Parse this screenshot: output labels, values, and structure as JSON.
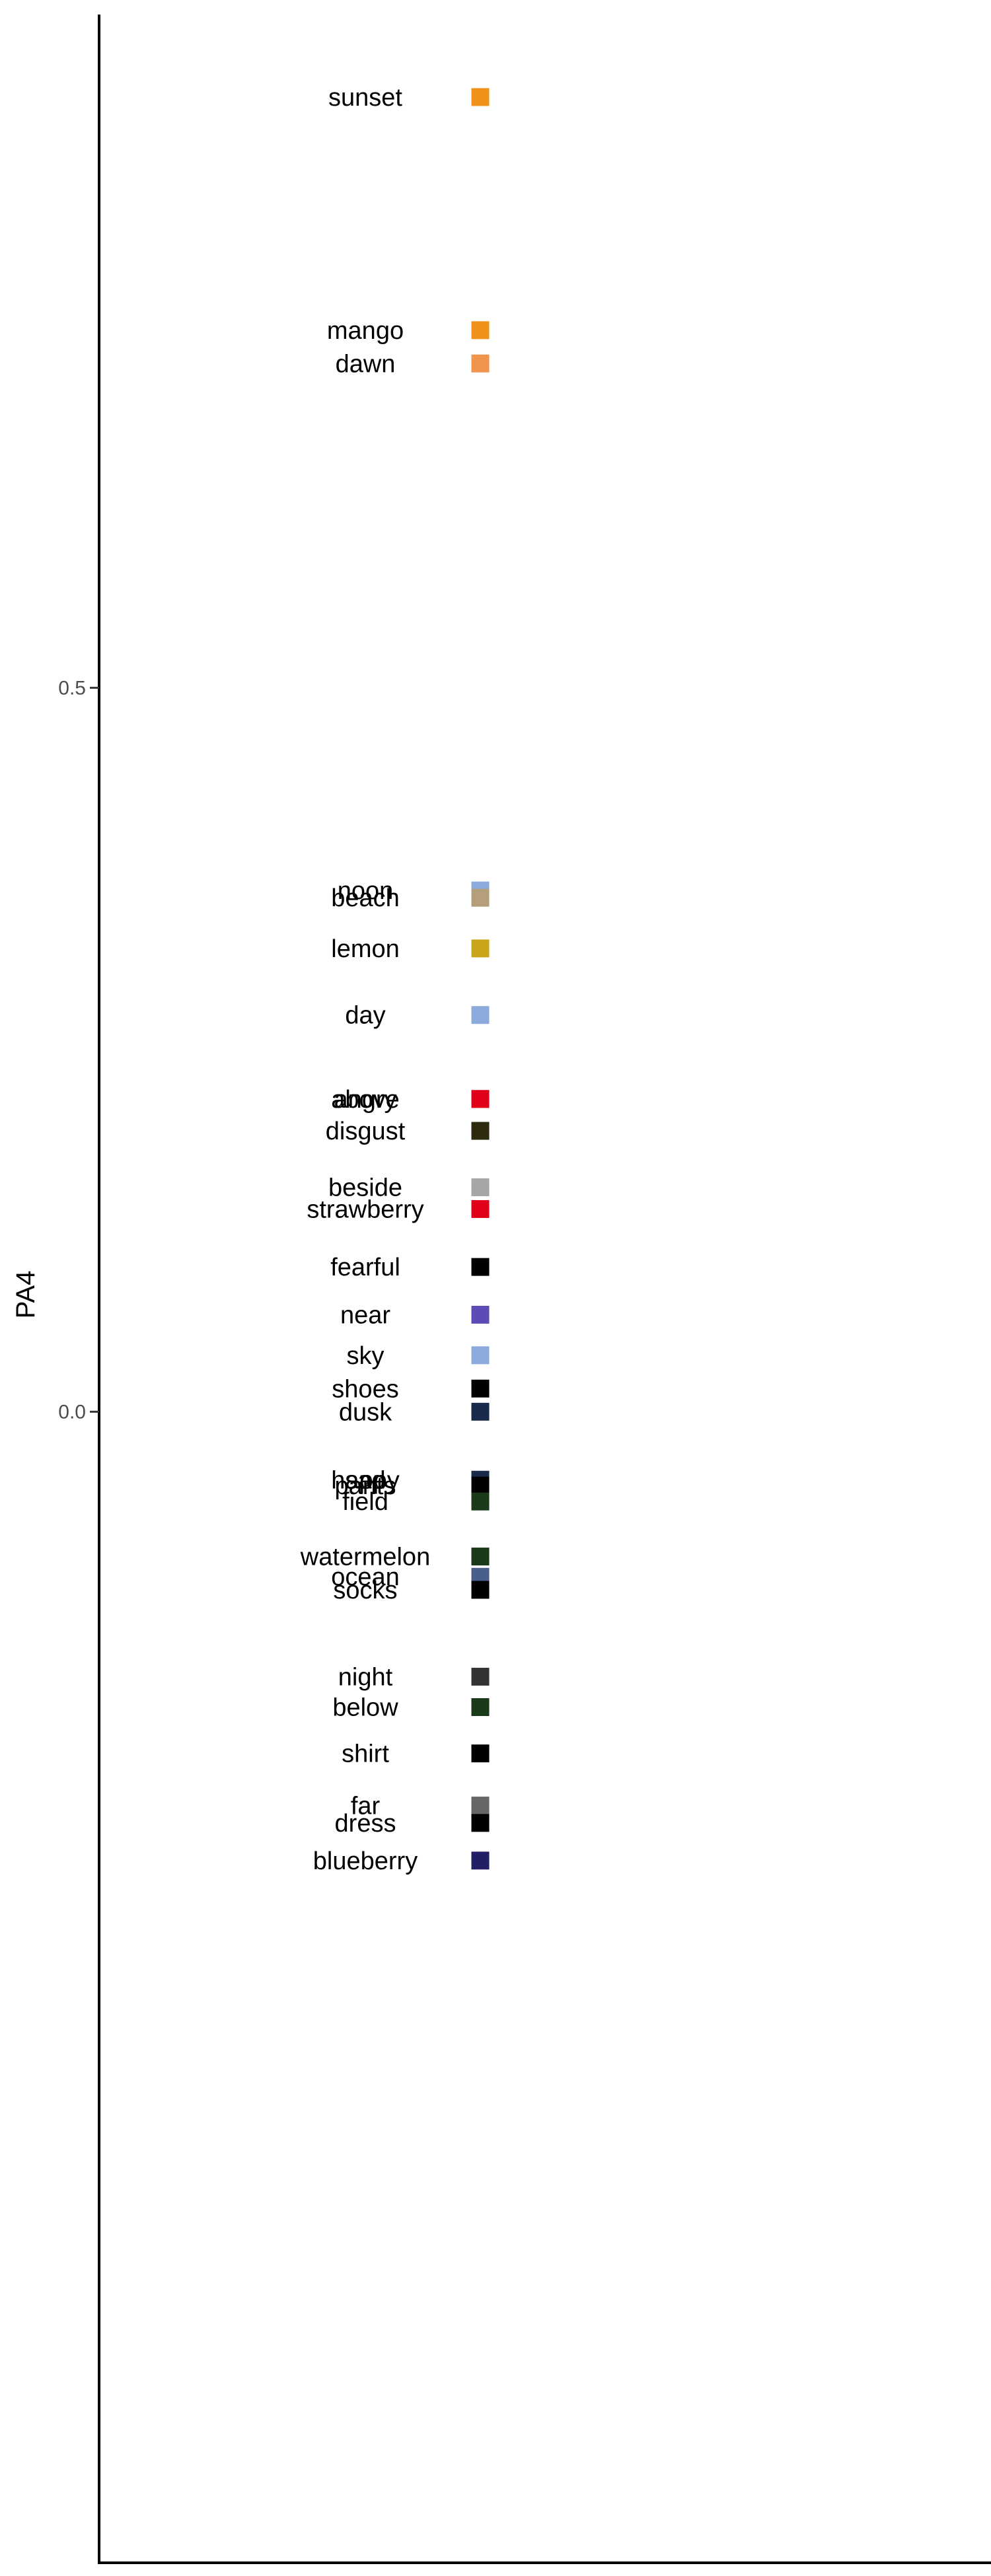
{
  "chart_data": {
    "type": "scatter",
    "title": "",
    "xlabel": "",
    "ylabel": "PA4",
    "ylim": [
      -0.795,
      0.965
    ],
    "y_ticks": [
      0.0,
      0.5
    ],
    "y_tick_labels": [
      "0.0",
      "0.5"
    ],
    "grid": false,
    "legend": "none",
    "points": [
      {
        "label": "sunset",
        "y": 0.908,
        "color": "#F0921A"
      },
      {
        "label": "mango",
        "y": 0.747,
        "color": "#F0921A"
      },
      {
        "label": "dawn",
        "y": 0.724,
        "color": "#F0944E"
      },
      {
        "label": "noon",
        "y": 0.36,
        "color": "#8DAADD"
      },
      {
        "label": "beach",
        "y": 0.355,
        "color": "#B59E7A"
      },
      {
        "label": "lemon",
        "y": 0.32,
        "color": "#C8A418"
      },
      {
        "label": "day",
        "y": 0.274,
        "color": "#8DAADD"
      },
      {
        "label": "above",
        "y": 0.216,
        "color": "#7F7F7F"
      },
      {
        "label": "angry",
        "y": 0.216,
        "color": "#E0001A"
      },
      {
        "label": "disgust",
        "y": 0.194,
        "color": "#2E2A10"
      },
      {
        "label": "beside",
        "y": 0.155,
        "color": "#A6A6A6"
      },
      {
        "label": "strawberry",
        "y": 0.14,
        "color": "#E0001A"
      },
      {
        "label": "fearful",
        "y": 0.1,
        "color": "#000000"
      },
      {
        "label": "near",
        "y": 0.067,
        "color": "#5B4DB5"
      },
      {
        "label": "sky",
        "y": 0.039,
        "color": "#8DAADD"
      },
      {
        "label": "shoes",
        "y": 0.016,
        "color": "#000000"
      },
      {
        "label": "dusk",
        "y": 0.0,
        "color": "#1A2A4A"
      },
      {
        "label": "happy",
        "y": -0.047,
        "color": "#0F1E3E"
      },
      {
        "label": "sad",
        "y": -0.047,
        "color": "#1A2A4A"
      },
      {
        "label": "pants",
        "y": -0.051,
        "color": "#000000"
      },
      {
        "label": "field",
        "y": -0.062,
        "color": "#1A3A1A"
      },
      {
        "label": "watermelon",
        "y": -0.1,
        "color": "#1A3A1A"
      },
      {
        "label": "ocean",
        "y": -0.114,
        "color": "#4A5E8A"
      },
      {
        "label": "socks",
        "y": -0.123,
        "color": "#000000"
      },
      {
        "label": "night",
        "y": -0.183,
        "color": "#333333"
      },
      {
        "label": "below",
        "y": -0.204,
        "color": "#1A3A1A"
      },
      {
        "label": "shirt",
        "y": -0.236,
        "color": "#000000"
      },
      {
        "label": "far",
        "y": -0.272,
        "color": "#666666"
      },
      {
        "label": "dress",
        "y": -0.284,
        "color": "#000000"
      },
      {
        "label": "blueberry",
        "y": -0.31,
        "color": "#221E66"
      }
    ]
  }
}
